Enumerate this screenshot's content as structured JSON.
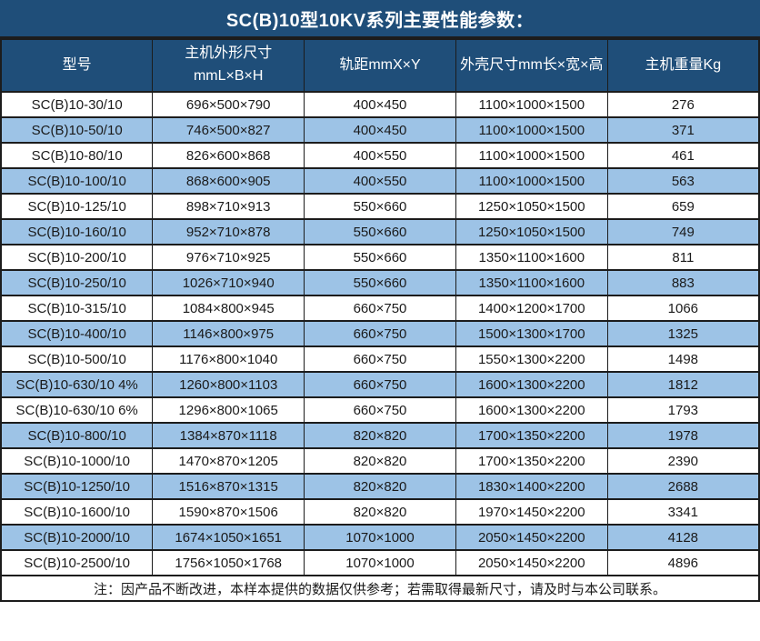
{
  "title": "SC(B)10型10KV系列主要性能参数：",
  "note": "注：因产品不断改进，本样本提供的数据仅供参考；若需取得最新尺寸，请及时与本公司联系。",
  "colors": {
    "header_bg": "#1F4E79",
    "header_text": "#FFFFFF",
    "row_bg": "#FFFFFF",
    "row_alt_bg": "#9DC3E6",
    "border": "#1C1C1C",
    "cell_text": "#1A1A1A"
  },
  "table": {
    "columns": [
      {
        "id": "model",
        "label": "型号"
      },
      {
        "id": "main-unit-dimensions",
        "label": "主机外形尺寸\nmmL×B×H"
      },
      {
        "id": "rail-gauge",
        "label": "轨距mmX×Y"
      },
      {
        "id": "enclosure-size",
        "label": "外壳尺寸mm长×宽×高"
      },
      {
        "id": "main-unit-weight",
        "label": "主机重量Kg"
      }
    ],
    "rows": [
      [
        "SC(B)10-30/10",
        "696×500×790",
        "400×450",
        "1100×1000×1500",
        "276"
      ],
      [
        "SC(B)10-50/10",
        "746×500×827",
        "400×450",
        "1100×1000×1500",
        "371"
      ],
      [
        "SC(B)10-80/10",
        "826×600×868",
        "400×550",
        "1100×1000×1500",
        "461"
      ],
      [
        "SC(B)10-100/10",
        "868×600×905",
        "400×550",
        "1100×1000×1500",
        "563"
      ],
      [
        "SC(B)10-125/10",
        "898×710×913",
        "550×660",
        "1250×1050×1500",
        "659"
      ],
      [
        "SC(B)10-160/10",
        "952×710×878",
        "550×660",
        "1250×1050×1500",
        "749"
      ],
      [
        "SC(B)10-200/10",
        "976×710×925",
        "550×660",
        "1350×1100×1600",
        "811"
      ],
      [
        "SC(B)10-250/10",
        "1026×710×940",
        "550×660",
        "1350×1100×1600",
        "883"
      ],
      [
        "SC(B)10-315/10",
        "1084×800×945",
        "660×750",
        "1400×1200×1700",
        "1066"
      ],
      [
        "SC(B)10-400/10",
        "1146×800×975",
        "660×750",
        "1500×1300×1700",
        "1325"
      ],
      [
        "SC(B)10-500/10",
        "1176×800×1040",
        "660×750",
        "1550×1300×2200",
        "1498"
      ],
      [
        "SC(B)10-630/10 4%",
        "1260×800×1103",
        "660×750",
        "1600×1300×2200",
        "1812"
      ],
      [
        "SC(B)10-630/10 6%",
        "1296×800×1065",
        "660×750",
        "1600×1300×2200",
        "1793"
      ],
      [
        "SC(B)10-800/10",
        "1384×870×1118",
        "820×820",
        "1700×1350×2200",
        "1978"
      ],
      [
        "SC(B)10-1000/10",
        "1470×870×1205",
        "820×820",
        "1700×1350×2200",
        "2390"
      ],
      [
        "SC(B)10-1250/10",
        "1516×870×1315",
        "820×820",
        "1830×1400×2200",
        "2688"
      ],
      [
        "SC(B)10-1600/10",
        "1590×870×1506",
        "820×820",
        "1970×1450×2200",
        "3341"
      ],
      [
        "SC(B)10-2000/10",
        "1674×1050×1651",
        "1070×1000",
        "2050×1450×2200",
        "4128"
      ],
      [
        "SC(B)10-2500/10",
        "1756×1050×1768",
        "1070×1000",
        "2050×1450×2200",
        "4896"
      ]
    ]
  }
}
